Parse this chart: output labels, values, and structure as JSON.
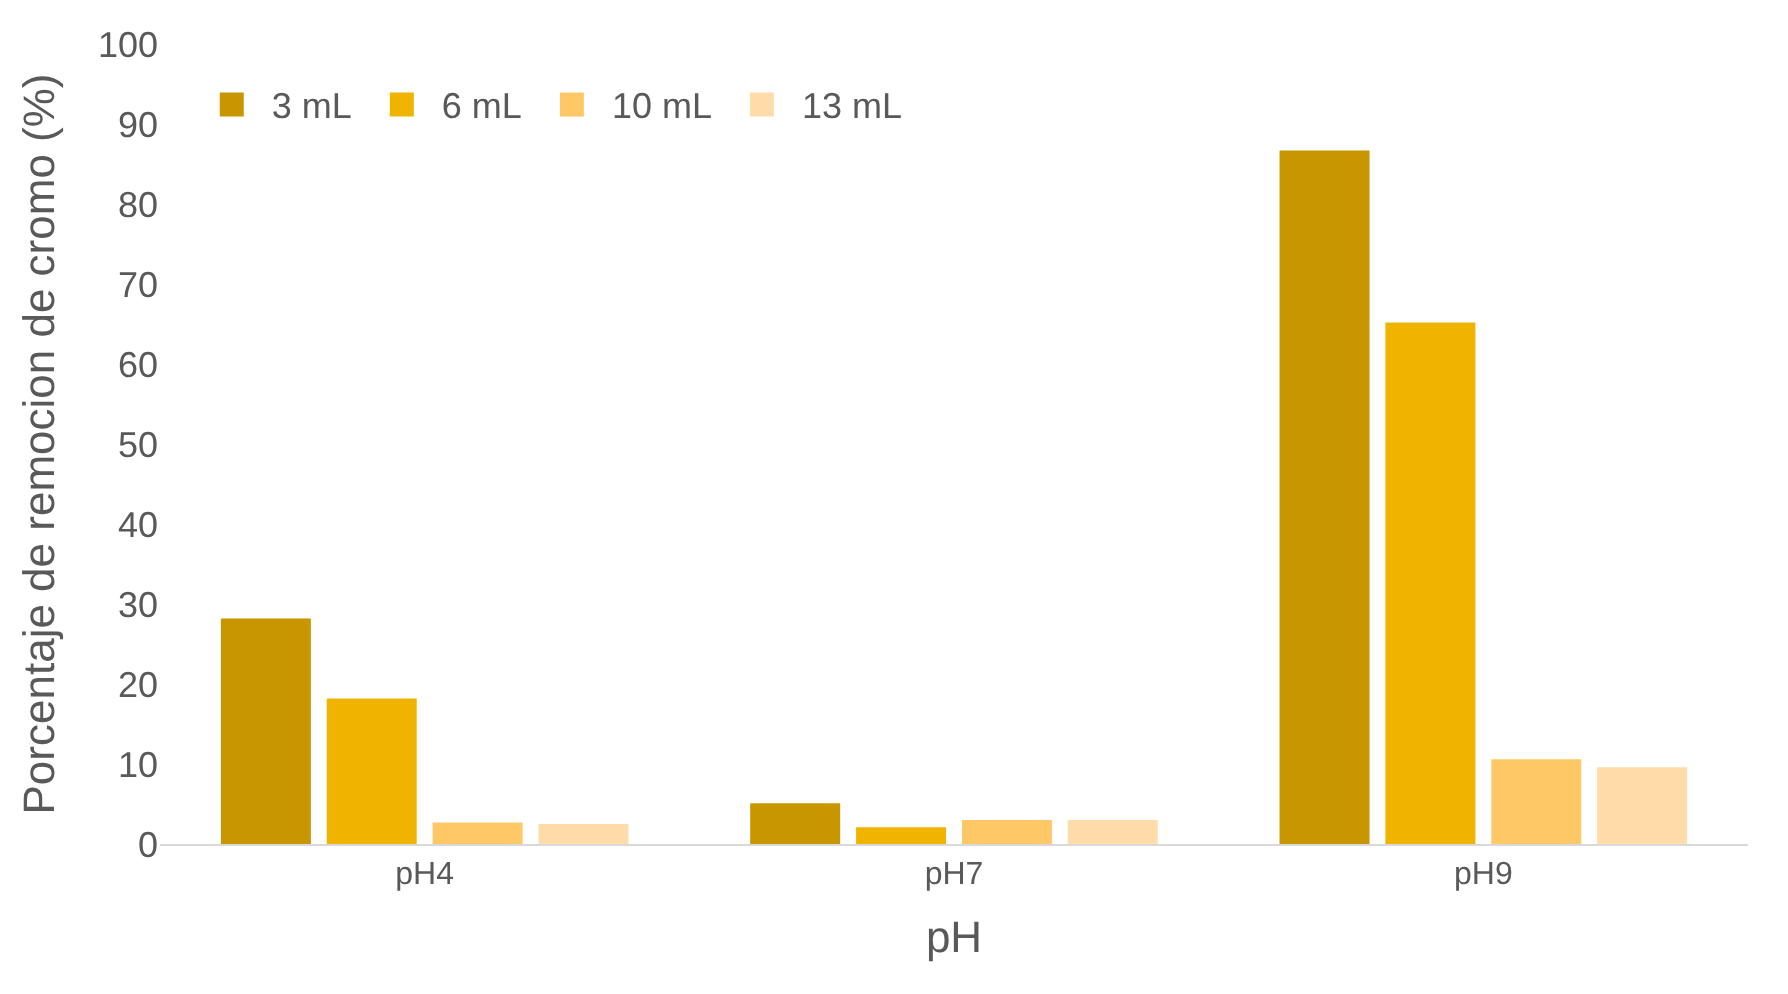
{
  "chart_data": {
    "type": "bar",
    "xlabel": "pH",
    "ylabel": "Porcentaje de remocion de cromo (%)",
    "categories": [
      "pH4",
      "pH7",
      "pH9"
    ],
    "series": [
      {
        "name": "3 mL",
        "color": "#c89600",
        "values": [
          28.2,
          5.1,
          86.7
        ]
      },
      {
        "name": "6 mL",
        "color": "#f0b400",
        "values": [
          18.2,
          2.1,
          65.2
        ]
      },
      {
        "name": "10 mL",
        "color": "#ffc866",
        "values": [
          2.7,
          3.0,
          10.6
        ]
      },
      {
        "name": "13 mL",
        "color": "#ffdcaa",
        "values": [
          2.5,
          3.0,
          9.6
        ]
      }
    ],
    "ylim": [
      0,
      100
    ],
    "yticks": [
      0,
      10,
      20,
      30,
      40,
      50,
      60,
      70,
      80,
      90,
      100
    ],
    "legend": "top left"
  }
}
